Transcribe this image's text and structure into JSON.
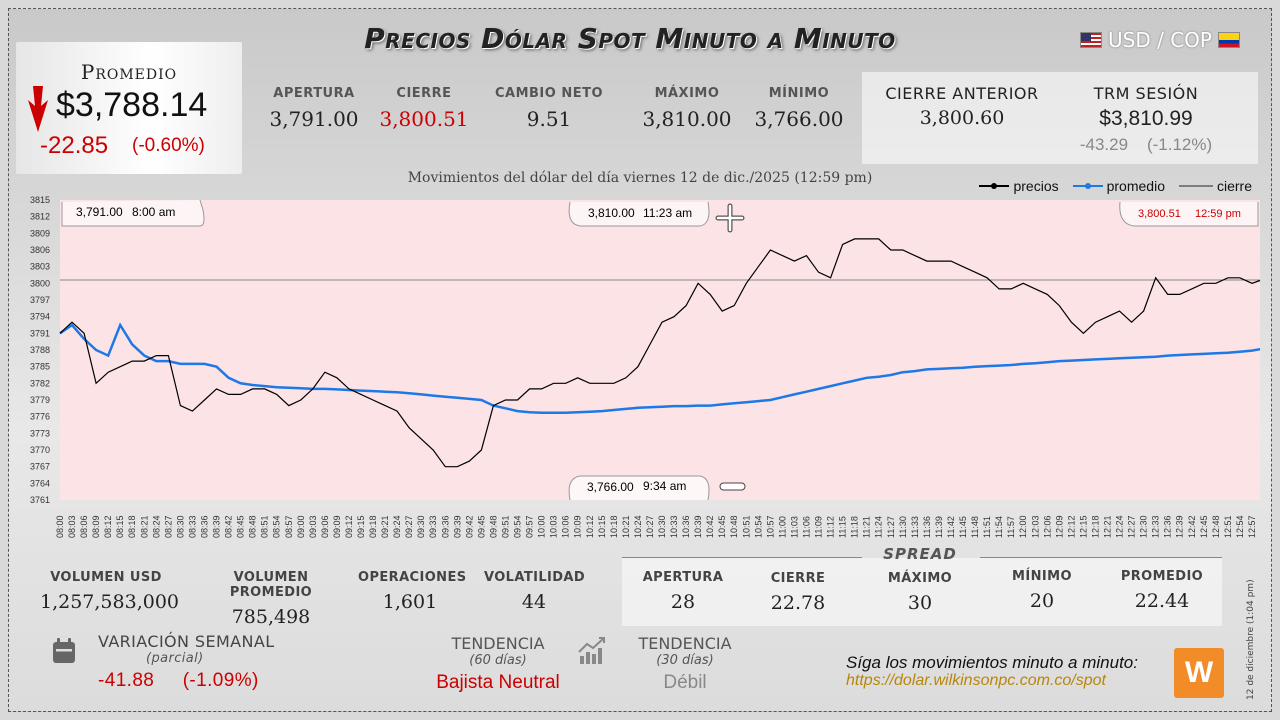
{
  "header": {
    "title": "Precios Dólar Spot Minuto a Minuto",
    "pair": "USD / COP"
  },
  "average": {
    "label": "Promedio",
    "value": "$3,788.14",
    "change": "-22.85",
    "change_pct": "(-0.60%)"
  },
  "top_stats": [
    {
      "label": "APERTURA",
      "value": "3,791.00"
    },
    {
      "label": "CIERRE",
      "value": "3,800.51"
    },
    {
      "label": "CAMBIO NETO",
      "value": "9.51"
    },
    {
      "label": "MÁXIMO",
      "value": "3,810.00"
    },
    {
      "label": "MÍNIMO",
      "value": "3,766.00"
    }
  ],
  "previous_close": {
    "label": "CIERRE ANTERIOR",
    "value": "3,800.60"
  },
  "trm": {
    "label": "TRM SESIÓN",
    "value": "$3,810.99",
    "change": "-43.29",
    "change_pct": "(-1.12%)"
  },
  "subtitle": "Movimientos del dólar del día viernes 12 de dic./2025 (12:59 pm)",
  "legend": {
    "prices": "precios",
    "average": "promedio",
    "close": "cierre"
  },
  "callouts": {
    "open": {
      "price": "3,791.00",
      "time": "8:00 am"
    },
    "max": {
      "price": "3,810.00",
      "time": "11:23 am"
    },
    "close": {
      "price": "3,800.51",
      "time": "12:59 pm"
    },
    "min": {
      "price": "3,766.00",
      "time": "9:34 am"
    }
  },
  "chart_data": {
    "type": "line",
    "title": "Movimientos del dólar del día viernes 12 de dic./2025 (12:59 pm)",
    "xlabel": "",
    "ylabel": "",
    "ylim": [
      3761,
      3815
    ],
    "yticks": [
      3761,
      3764,
      3767,
      3770,
      3773,
      3776,
      3779,
      3782,
      3785,
      3788,
      3791,
      3794,
      3797,
      3800,
      3803,
      3806,
      3809,
      3812,
      3815
    ],
    "xticks": [
      "08:00",
      "08:03",
      "08:06",
      "08:09",
      "08:12",
      "08:15",
      "08:18",
      "08:21",
      "08:24",
      "08:27",
      "08:30",
      "08:33",
      "08:36",
      "08:39",
      "08:42",
      "08:45",
      "08:48",
      "08:51",
      "08:54",
      "08:57",
      "09:00",
      "09:03",
      "09:06",
      "09:09",
      "09:12",
      "09:15",
      "09:18",
      "09:21",
      "09:24",
      "09:27",
      "09:30",
      "09:33",
      "09:36",
      "09:39",
      "09:42",
      "09:45",
      "09:48",
      "09:51",
      "09:54",
      "09:57",
      "10:00",
      "10:03",
      "10:06",
      "10:09",
      "10:12",
      "10:15",
      "10:18",
      "10:21",
      "10:24",
      "10:27",
      "10:30",
      "10:33",
      "10:36",
      "10:39",
      "10:42",
      "10:45",
      "10:48",
      "10:51",
      "10:54",
      "10:57",
      "11:00",
      "11:03",
      "11:06",
      "11:09",
      "11:12",
      "11:15",
      "11:18",
      "11:21",
      "11:24",
      "11:27",
      "11:30",
      "11:33",
      "11:36",
      "11:39",
      "11:42",
      "11:45",
      "11:48",
      "11:51",
      "11:54",
      "11:57",
      "12:00",
      "12:03",
      "12:06",
      "12:09",
      "12:12",
      "12:15",
      "12:18",
      "12:21",
      "12:24",
      "12:27",
      "12:30",
      "12:33",
      "12:36",
      "12:39",
      "12:42",
      "12:45",
      "12:48",
      "12:51",
      "12:54",
      "12:57"
    ],
    "close_line": 3800.6,
    "grid": false,
    "legend_position": "top-right",
    "series": [
      {
        "name": "precios",
        "color": "#000000",
        "x": [
          "08:00",
          "08:03",
          "08:06",
          "08:09",
          "08:12",
          "08:15",
          "08:18",
          "08:21",
          "08:24",
          "08:27",
          "08:30",
          "08:33",
          "08:36",
          "08:39",
          "08:42",
          "08:45",
          "08:48",
          "08:51",
          "08:54",
          "08:57",
          "09:00",
          "09:03",
          "09:06",
          "09:09",
          "09:12",
          "09:15",
          "09:18",
          "09:21",
          "09:24",
          "09:27",
          "09:30",
          "09:33",
          "09:36",
          "09:39",
          "09:42",
          "09:45",
          "09:48",
          "09:51",
          "09:54",
          "09:57",
          "10:00",
          "10:03",
          "10:06",
          "10:09",
          "10:12",
          "10:15",
          "10:18",
          "10:21",
          "10:24",
          "10:27",
          "10:30",
          "10:33",
          "10:36",
          "10:39",
          "10:42",
          "10:45",
          "10:48",
          "10:51",
          "10:54",
          "10:57",
          "11:00",
          "11:03",
          "11:06",
          "11:09",
          "11:12",
          "11:15",
          "11:18",
          "11:21",
          "11:24",
          "11:27",
          "11:30",
          "11:33",
          "11:36",
          "11:39",
          "11:42",
          "11:45",
          "11:48",
          "11:51",
          "11:54",
          "11:57",
          "12:00",
          "12:03",
          "12:06",
          "12:09",
          "12:12",
          "12:15",
          "12:18",
          "12:21",
          "12:24",
          "12:27",
          "12:30",
          "12:33",
          "12:36",
          "12:39",
          "12:42",
          "12:45",
          "12:48",
          "12:51",
          "12:54",
          "12:57",
          "12:59"
        ],
        "values": [
          3791,
          3793,
          3791,
          3782,
          3784,
          3785,
          3786,
          3786,
          3787,
          3787,
          3778,
          3777,
          3779,
          3781,
          3780,
          3780,
          3781,
          3781,
          3780,
          3778,
          3779,
          3781,
          3784,
          3783,
          3781,
          3780,
          3779,
          3778,
          3777,
          3774,
          3772,
          3770,
          3767,
          3767,
          3768,
          3770,
          3778,
          3779,
          3779,
          3781,
          3781,
          3782,
          3782,
          3783,
          3782,
          3782,
          3782,
          3783,
          3785,
          3789,
          3793,
          3794,
          3796,
          3800,
          3798,
          3795,
          3796,
          3800,
          3803,
          3806,
          3805,
          3804,
          3805,
          3802,
          3801,
          3807,
          3808,
          3808,
          3808,
          3806,
          3806,
          3805,
          3804,
          3804,
          3804,
          3803,
          3802,
          3801,
          3799,
          3799,
          3800,
          3799,
          3798,
          3796,
          3793,
          3791,
          3793,
          3794,
          3795,
          3793,
          3795,
          3801,
          3798,
          3798,
          3799,
          3800,
          3800,
          3801,
          3801,
          3800,
          3800.51
        ]
      },
      {
        "name": "promedio",
        "color": "#1e78e6",
        "x": [
          "08:00",
          "08:03",
          "08:06",
          "08:09",
          "08:12",
          "08:15",
          "08:18",
          "08:21",
          "08:24",
          "08:27",
          "08:30",
          "08:33",
          "08:36",
          "08:39",
          "08:42",
          "08:45",
          "08:48",
          "08:51",
          "08:54",
          "08:57",
          "09:00",
          "09:03",
          "09:06",
          "09:09",
          "09:12",
          "09:15",
          "09:18",
          "09:21",
          "09:24",
          "09:27",
          "09:30",
          "09:33",
          "09:36",
          "09:39",
          "09:42",
          "09:45",
          "09:48",
          "09:51",
          "09:54",
          "09:57",
          "10:00",
          "10:03",
          "10:06",
          "10:09",
          "10:12",
          "10:15",
          "10:18",
          "10:21",
          "10:24",
          "10:27",
          "10:30",
          "10:33",
          "10:36",
          "10:39",
          "10:42",
          "10:45",
          "10:48",
          "10:51",
          "10:54",
          "10:57",
          "11:00",
          "11:03",
          "11:06",
          "11:09",
          "11:12",
          "11:15",
          "11:18",
          "11:21",
          "11:24",
          "11:27",
          "11:30",
          "11:33",
          "11:36",
          "11:39",
          "11:42",
          "11:45",
          "11:48",
          "11:51",
          "11:54",
          "11:57",
          "12:00",
          "12:03",
          "12:06",
          "12:09",
          "12:12",
          "12:15",
          "12:18",
          "12:21",
          "12:24",
          "12:27",
          "12:30",
          "12:33",
          "12:36",
          "12:39",
          "12:42",
          "12:45",
          "12:48",
          "12:51",
          "12:54",
          "12:57",
          "12:59"
        ],
        "values": [
          3791,
          3792.5,
          3790,
          3788,
          3787,
          3792.5,
          3789,
          3787,
          3786,
          3786,
          3785.5,
          3785.5,
          3785.5,
          3785,
          3783,
          3782,
          3781.7,
          3781.5,
          3781.3,
          3781.2,
          3781.1,
          3781,
          3781,
          3780.9,
          3780.8,
          3780.7,
          3780.6,
          3780.5,
          3780.4,
          3780.2,
          3780,
          3779.8,
          3779.6,
          3779.4,
          3779.2,
          3779,
          3778,
          3777.5,
          3777,
          3776.8,
          3776.7,
          3776.7,
          3776.7,
          3776.8,
          3776.9,
          3777,
          3777.2,
          3777.4,
          3777.6,
          3777.7,
          3777.8,
          3777.9,
          3777.9,
          3778,
          3778,
          3778.2,
          3778.4,
          3778.6,
          3778.8,
          3779,
          3779.5,
          3780,
          3780.5,
          3781,
          3781.5,
          3782,
          3782.5,
          3783,
          3783.2,
          3783.5,
          3784,
          3784.2,
          3784.5,
          3784.6,
          3784.7,
          3784.8,
          3785,
          3785.1,
          3785.2,
          3785.3,
          3785.5,
          3785.6,
          3785.8,
          3786,
          3786.1,
          3786.2,
          3786.3,
          3786.4,
          3786.5,
          3786.6,
          3786.7,
          3786.8,
          3787,
          3787.1,
          3787.2,
          3787.3,
          3787.4,
          3787.5,
          3787.7,
          3787.9,
          3788.14
        ]
      }
    ]
  },
  "bottom_stats": [
    {
      "label": "VOLUMEN USD",
      "value": "1,257,583,000"
    },
    {
      "label": "VOLUMEN PROMEDIO",
      "value": "785,498"
    },
    {
      "label": "OPERACIONES",
      "value": "1,601"
    },
    {
      "label": "VOLATILIDAD",
      "value": "44"
    }
  ],
  "spread": {
    "title": "SPREAD",
    "items": [
      {
        "label": "APERTURA",
        "value": "28"
      },
      {
        "label": "CIERRE",
        "value": "22.78"
      },
      {
        "label": "MÁXIMO",
        "value": "30"
      },
      {
        "label": "MÍNIMO",
        "value": "20"
      },
      {
        "label": "PROMEDIO",
        "value": "22.44"
      }
    ]
  },
  "weekly": {
    "label": "VARIACIÓN SEMANAL",
    "sub": "(parcial)",
    "change": "-41.88",
    "change_pct": "(-1.09%)"
  },
  "trend60": {
    "label": "TENDENCIA",
    "sub": "(60 días)",
    "value": "Bajista Neutral"
  },
  "trend30": {
    "label": "TENDENCIA",
    "sub": "(30 días)",
    "value": "Débil"
  },
  "promo": {
    "text": "Síga los movimientos minuto a minuto:",
    "url": "https://dolar.wilkinsonpc.com.co/spot"
  },
  "logo_text": "W",
  "vertical_date": "12 de diciembre (1:04 pm)",
  "colors": {
    "accent_red": "#cc0000",
    "average_line": "#1e78e6",
    "area_fill": "#ffe0e0"
  }
}
